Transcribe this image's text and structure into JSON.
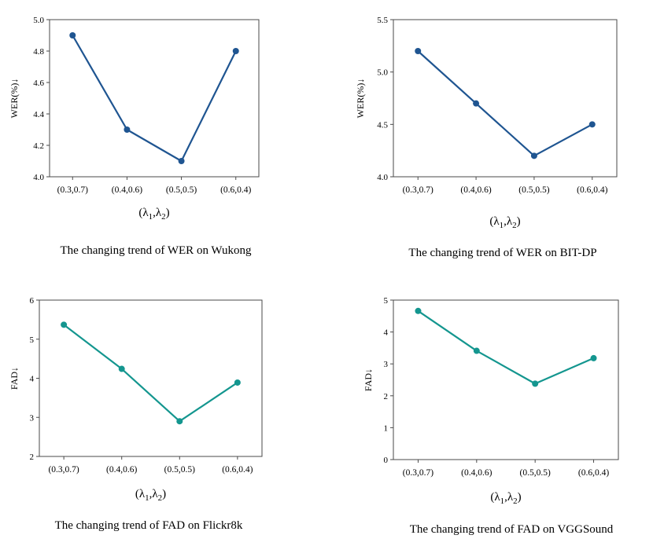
{
  "chart_data": [
    {
      "type": "line",
      "categories": [
        "(0.3,0.7)",
        "(0.4,0.6)",
        "(0.5,0.5)",
        "(0.6,0.4)"
      ],
      "values": [
        4.9,
        4.3,
        4.1,
        4.8
      ],
      "ylabel": "WER(%)↓",
      "xlabel_main": "(λ",
      "xlabel_sub1": "1",
      "xlabel_sep": ",λ",
      "xlabel_sub2": "2",
      "xlabel_end": ")",
      "ylim": [
        4.0,
        5.0
      ],
      "yticks": [
        "4.0",
        "4.2",
        "4.4",
        "4.6",
        "4.8",
        "5.0"
      ],
      "ytick_values": [
        4.0,
        4.2,
        4.4,
        4.6,
        4.8,
        5.0
      ],
      "caption": "The changing trend of WER on Wukong",
      "color": "#1f5591"
    },
    {
      "type": "line",
      "categories": [
        "(0.3,0.7)",
        "(0.4,0.6)",
        "(0.5,0.5)",
        "(0.6,0.4)"
      ],
      "values": [
        5.2,
        4.7,
        4.2,
        4.5
      ],
      "ylabel": "WER(%)↓",
      "xlabel_main": "(λ",
      "xlabel_sub1": "1",
      "xlabel_sep": ",λ",
      "xlabel_sub2": "2",
      "xlabel_end": ")",
      "ylim": [
        4.0,
        5.5
      ],
      "yticks": [
        "4.0",
        "4.5",
        "5.0",
        "5.5"
      ],
      "ytick_values": [
        4.0,
        4.5,
        5.0,
        5.5
      ],
      "caption": "The changing trend of WER on BIT-DP",
      "color": "#1f5591"
    },
    {
      "type": "line",
      "categories": [
        "(0.3,0.7)",
        "(0.4,0.6)",
        "(0.5,0.5)",
        "(0.6,0.4)"
      ],
      "values": [
        5.37,
        4.24,
        2.9,
        3.89
      ],
      "ylabel": "FAD↓",
      "xlabel_main": "(λ",
      "xlabel_sub1": "1",
      "xlabel_sep": ",λ",
      "xlabel_sub2": "2",
      "xlabel_end": ")",
      "ylim": [
        2,
        6
      ],
      "yticks": [
        "2",
        "3",
        "4",
        "5",
        "6"
      ],
      "ytick_values": [
        2,
        3,
        4,
        5,
        6
      ],
      "caption": "The changing trend of FAD on Flickr8k",
      "color": "#14968f"
    },
    {
      "type": "line",
      "categories": [
        "(0.3,0.7)",
        "(0.4,0.6)",
        "(0.5,0.5)",
        "(0.6,0.4)"
      ],
      "values": [
        4.66,
        3.41,
        2.38,
        3.18
      ],
      "ylabel": "FAD↓",
      "xlabel_main": "(λ",
      "xlabel_sub1": "1",
      "xlabel_sep": ",λ",
      "xlabel_sub2": "2",
      "xlabel_end": ")",
      "ylim": [
        0,
        5
      ],
      "yticks": [
        "0",
        "1",
        "2",
        "3",
        "4",
        "5"
      ],
      "ytick_values": [
        0,
        1,
        2,
        3,
        4,
        5
      ],
      "caption": "The changing trend of FAD on VGGSound",
      "color": "#14968f"
    }
  ]
}
